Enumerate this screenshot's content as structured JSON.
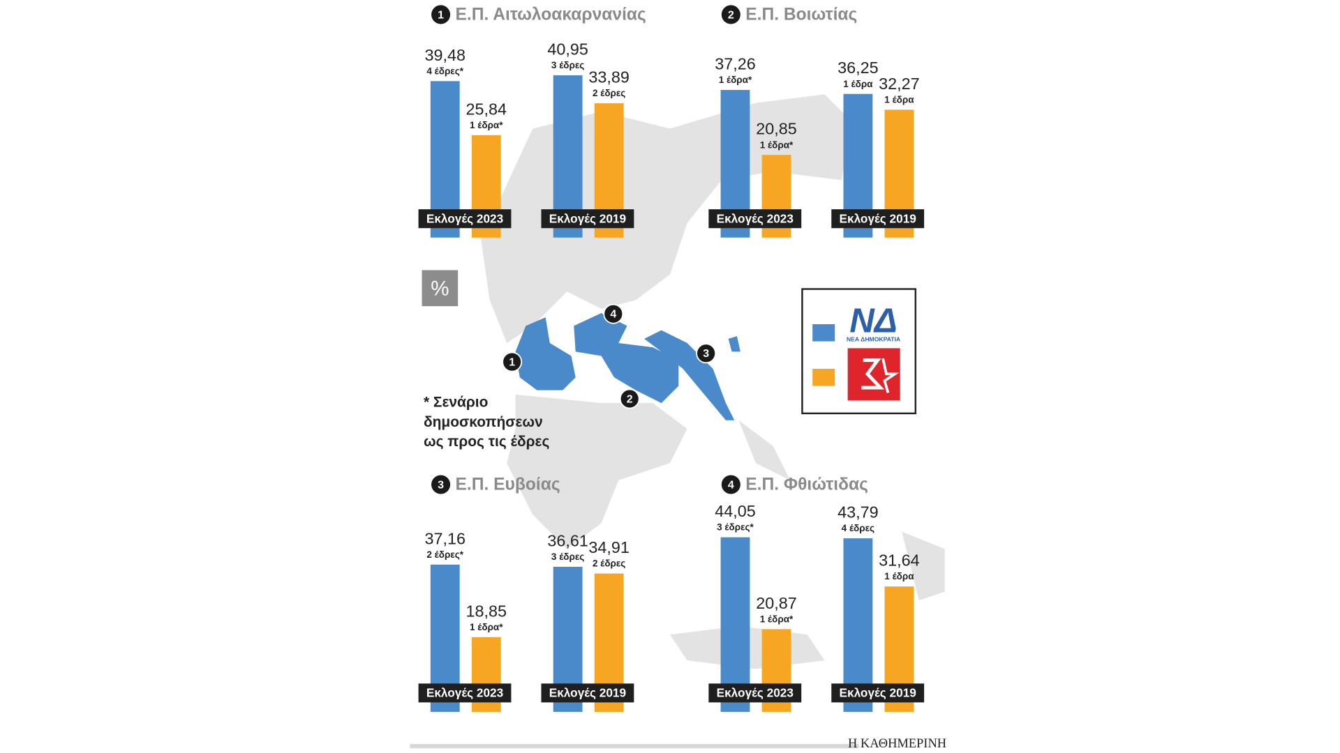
{
  "chart_data": [
    {
      "type": "bar",
      "number": "1",
      "title": "Ε.Π. Αιτωλοακαρνανίας",
      "categories": [
        "Εκλογές 2023",
        "Εκλογές 2019"
      ],
      "series": [
        {
          "color": "#4a8acb",
          "values": [
            39.48,
            40.95
          ],
          "value_labels": [
            "39,48",
            "40,95"
          ],
          "seat_labels": [
            "4 έδρες*",
            "3 έδρες"
          ]
        },
        {
          "color": "#f6a623",
          "values": [
            25.84,
            33.89
          ],
          "value_labels": [
            "25,84",
            "33,89"
          ],
          "seat_labels": [
            "1 έδρα*",
            "2 έδρες"
          ]
        }
      ]
    },
    {
      "type": "bar",
      "number": "2",
      "title": "Ε.Π. Βοιωτίας",
      "categories": [
        "Εκλογές 2023",
        "Εκλογές 2019"
      ],
      "series": [
        {
          "color": "#4a8acb",
          "values": [
            37.26,
            36.25
          ],
          "value_labels": [
            "37,26",
            "36,25"
          ],
          "seat_labels": [
            "1 έδρα*",
            "1 έδρα"
          ]
        },
        {
          "color": "#f6a623",
          "values": [
            20.85,
            32.27
          ],
          "value_labels": [
            "20,85",
            "32,27"
          ],
          "seat_labels": [
            "1 έδρα*",
            "1 έδρα"
          ]
        }
      ]
    },
    {
      "type": "bar",
      "number": "3",
      "title": "Ε.Π. Ευβοίας",
      "categories": [
        "Εκλογές 2023",
        "Εκλογές 2019"
      ],
      "series": [
        {
          "color": "#4a8acb",
          "values": [
            37.16,
            36.61
          ],
          "value_labels": [
            "37,16",
            "36,61"
          ],
          "seat_labels": [
            "2 έδρες*",
            "3 έδρες"
          ]
        },
        {
          "color": "#f6a623",
          "values": [
            18.85,
            34.91
          ],
          "value_labels": [
            "18,85",
            "34,91"
          ],
          "seat_labels": [
            "1 έδρα*",
            "2 έδρες"
          ]
        }
      ]
    },
    {
      "type": "bar",
      "number": "4",
      "title": "Ε.Π. Φθιώτιδας",
      "categories": [
        "Εκλογές 2023",
        "Εκλογές 2019"
      ],
      "series": [
        {
          "color": "#4a8acb",
          "values": [
            44.05,
            43.79
          ],
          "value_labels": [
            "44,05",
            "43,79"
          ],
          "seat_labels": [
            "3 έδρες*",
            "4 έδρες"
          ]
        },
        {
          "color": "#f6a623",
          "values": [
            20.87,
            31.64
          ],
          "value_labels": [
            "20,87",
            "31,64"
          ],
          "seat_labels": [
            "1 έδρα*",
            "1 έδρα"
          ]
        }
      ]
    }
  ],
  "unit_badge": "%",
  "footnote": [
    "* Σενάριο",
    "δημοσκοπήσεων",
    "ως προς τις έδρες"
  ],
  "legend": {
    "nd_logo": "ΝΔ",
    "nd_caption": "ΝΕΑ ΔΗΜΟΚΡΑΤΙΑ"
  },
  "source": "Η ΚΑΘΗΜΕΡΙΝΗ"
}
